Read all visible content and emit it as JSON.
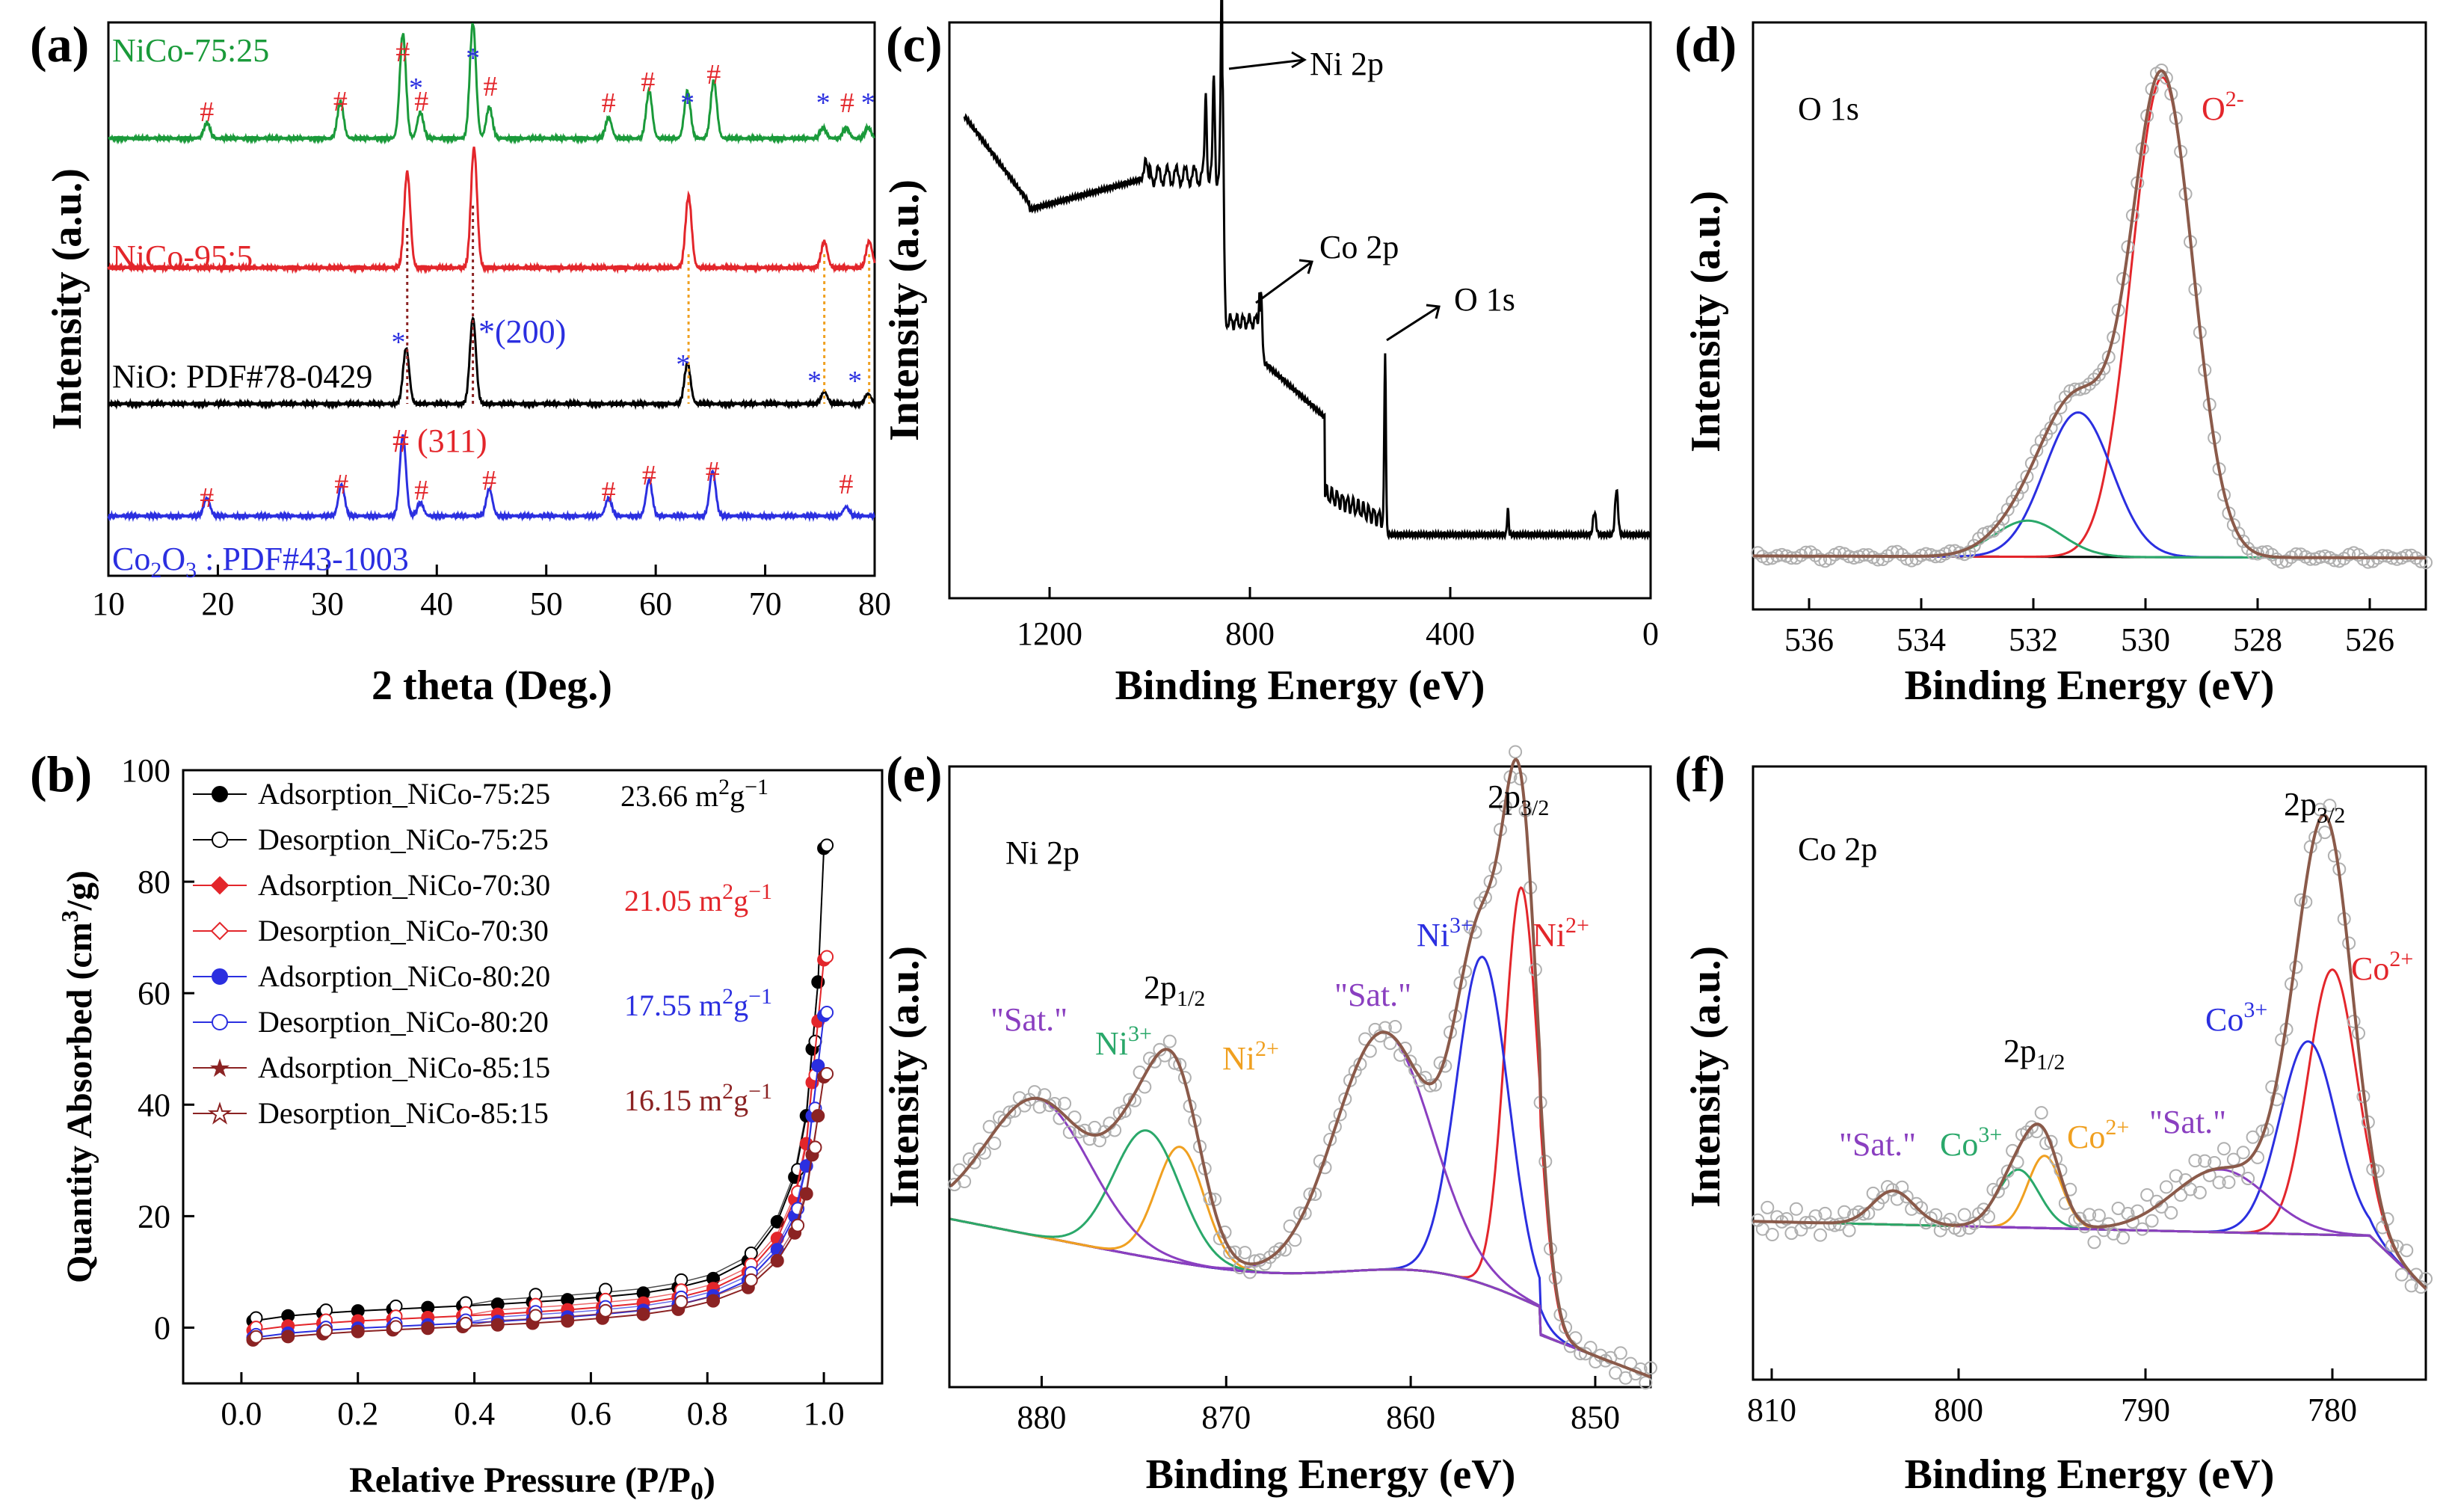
{
  "figure": "XRD, BET and XPS characterization",
  "colors": {
    "black": "#000000",
    "green": "#1a9a3a",
    "red": "#e3262b",
    "blue": "#2b2fe0",
    "orange": "#f0a020",
    "purple": "#8a3fc0",
    "teal": "#2aa86a",
    "brown": "#8b2323",
    "envelope": "#8a5a4a",
    "gray": "#999999",
    "darkblue": "#1a1aa0",
    "lightorange": "#f5a623"
  },
  "chart_data": [
    {
      "id": "a",
      "panel": "(a)",
      "type": "line",
      "xlabel": "2 theta (Deg.)",
      "ylabel": "Intensity (a.u.)",
      "xlim": [
        10,
        80
      ],
      "xticks": [
        10,
        20,
        30,
        40,
        50,
        60,
        70,
        80
      ],
      "series": [
        {
          "name": "NiCo-75:25",
          "color": "green",
          "peaks": [
            [
              19.0,
              0.15
            ],
            [
              31.2,
              0.35
            ],
            [
              36.9,
              1.0
            ],
            [
              38.5,
              0.25
            ],
            [
              43.3,
              1.1
            ],
            [
              44.8,
              0.3
            ],
            [
              55.7,
              0.2
            ],
            [
              59.4,
              0.45
            ],
            [
              62.9,
              0.45
            ],
            [
              65.3,
              0.55
            ],
            [
              75.3,
              0.1
            ],
            [
              77.4,
              0.1
            ],
            [
              79.4,
              0.1
            ]
          ]
        },
        {
          "name": "NiCo-95:5",
          "color": "red",
          "peaks": [
            [
              37.3,
              0.8
            ],
            [
              43.4,
              1.0
            ],
            [
              63.0,
              0.6
            ],
            [
              75.4,
              0.22
            ],
            [
              79.5,
              0.22
            ]
          ]
        },
        {
          "name": "NiO: PDF#78-0429",
          "color": "black",
          "peaks": [
            [
              37.2,
              0.55
            ],
            [
              43.3,
              0.85
            ],
            [
              62.9,
              0.4
            ],
            [
              75.4,
              0.12
            ],
            [
              79.4,
              0.1
            ]
          ]
        },
        {
          "name": "Co2O3 : PDF#43-1003",
          "label_main": "Co",
          "label_sub1": "2",
          "label_mid": "O",
          "label_sub2": "3",
          "label_rest": " : PDF#43-1003",
          "color": "blue",
          "peaks": [
            [
              19.0,
              0.2
            ],
            [
              31.3,
              0.35
            ],
            [
              36.9,
              0.9
            ],
            [
              38.5,
              0.15
            ],
            [
              44.8,
              0.3
            ],
            [
              55.7,
              0.2
            ],
            [
              59.4,
              0.4
            ],
            [
              65.2,
              0.5
            ],
            [
              77.4,
              0.1
            ]
          ]
        }
      ],
      "markers": [
        "#",
        "*"
      ],
      "annotations": [
        "*(200)",
        "# (311)"
      ]
    },
    {
      "id": "b",
      "panel": "(b)",
      "type": "scatter",
      "xlabel": "Relative Pressure (P/P",
      "xlabel_sub": "0",
      "xlabel_end": ")",
      "ylabel": "Quantity Absorbed (cm",
      "ylabel_sup": "3",
      "ylabel_end": "/g)",
      "xlim": [
        -0.1,
        1.1
      ],
      "ylim": [
        -10,
        100
      ],
      "xticks": [
        0.0,
        0.2,
        0.4,
        0.6,
        0.8,
        1.0
      ],
      "yticks": [
        0,
        20,
        40,
        60,
        80,
        100
      ],
      "x": [
        0.02,
        0.08,
        0.14,
        0.2,
        0.26,
        0.32,
        0.38,
        0.44,
        0.5,
        0.56,
        0.62,
        0.69,
        0.75,
        0.81,
        0.87,
        0.92,
        0.95,
        0.97,
        0.98,
        0.99,
        1.0
      ],
      "legend": [
        {
          "label": "Adsorption_NiCo-75:25",
          "color": "black",
          "marker": "filled-circle"
        },
        {
          "label": "Desorption_NiCo-75:25",
          "color": "black",
          "marker": "open-circle"
        },
        {
          "label": "Adsorption_NiCo-70:30",
          "color": "red",
          "marker": "filled-diamond"
        },
        {
          "label": "Desorption_NiCo-70:30",
          "color": "red",
          "marker": "open-diamond"
        },
        {
          "label": "Adsorption_NiCo-80:20",
          "color": "blue",
          "marker": "half-circle"
        },
        {
          "label": "Desorption_NiCo-80:20",
          "color": "blue",
          "marker": "open-circle"
        },
        {
          "label": "Adsorption_NiCo-85:15",
          "color": "brown",
          "marker": "filled-star"
        },
        {
          "label": "Desorption_NiCo-85:15",
          "color": "brown",
          "marker": "open-star"
        }
      ],
      "series": [
        {
          "name": "NiCo-75:25",
          "color": "black",
          "y": [
            1.2,
            2.1,
            2.6,
            3.0,
            3.3,
            3.6,
            3.9,
            4.2,
            4.6,
            5.0,
            5.5,
            6.2,
            7.2,
            8.8,
            12,
            19,
            27,
            38,
            50,
            62,
            86
          ],
          "area": "23.66 m",
          "area_sup": "2",
          "area_mid": "g",
          "area_sup2": "−1"
        },
        {
          "name": "NiCo-70:30",
          "color": "red",
          "y": [
            -0.5,
            0.3,
            0.8,
            1.2,
            1.5,
            1.8,
            2.1,
            2.4,
            2.8,
            3.2,
            3.7,
            4.4,
            5.4,
            7.0,
            10,
            16,
            23,
            33,
            44,
            55,
            66
          ],
          "area": "21.05 m",
          "area_sup": "2",
          "area_mid": "g",
          "area_sup2": "−1"
        },
        {
          "name": "NiCo-80:20",
          "color": "blue",
          "y": [
            -1.8,
            -1.0,
            -0.5,
            -0.1,
            0.2,
            0.5,
            0.8,
            1.1,
            1.5,
            1.9,
            2.4,
            3.1,
            4.1,
            5.7,
            8.5,
            14,
            20,
            29,
            38,
            47,
            56
          ],
          "area": "17.55 m",
          "area_sup": "2",
          "area_mid": "g",
          "area_sup2": "−1"
        },
        {
          "name": "NiCo-85:15",
          "color": "brown",
          "y": [
            -2.2,
            -1.6,
            -1.1,
            -0.7,
            -0.4,
            -0.1,
            0.2,
            0.5,
            0.8,
            1.2,
            1.7,
            2.4,
            3.3,
            4.8,
            7.2,
            12,
            17,
            24,
            31,
            38,
            45
          ],
          "area": "16.15 m",
          "area_sup": "2",
          "area_mid": "g",
          "area_sup2": "−1"
        }
      ]
    },
    {
      "id": "c",
      "panel": "(c)",
      "type": "line",
      "xlabel": "Binding Energy (eV)",
      "ylabel": "Intensity (a.u.)",
      "xlim": [
        1400,
        0
      ],
      "xticks": [
        1200,
        800,
        400,
        0
      ],
      "annotations": [
        "Ni 2p",
        "Co 2p",
        "O 1s"
      ]
    },
    {
      "id": "d",
      "panel": "(d)",
      "type": "line",
      "xlabel": "Binding Energy (eV)",
      "ylabel": "Intensity (a.u.)",
      "xlim": [
        537,
        525
      ],
      "xticks": [
        536,
        534,
        532,
        530,
        528,
        526
      ],
      "title": "O 1s",
      "annotations": [
        {
          "text": "O",
          "sup": "2-"
        }
      ],
      "components": [
        {
          "center": 529.7,
          "height": 0.93,
          "width": 0.55,
          "color": "red"
        },
        {
          "center": 531.2,
          "height": 0.28,
          "width": 0.6,
          "color": "blue"
        },
        {
          "center": 532.1,
          "height": 0.07,
          "width": 0.6,
          "color": "teal"
        }
      ]
    },
    {
      "id": "e",
      "panel": "(e)",
      "type": "line",
      "xlabel": "Binding Energy (eV)",
      "ylabel": "Intensity (a.u.)",
      "xlim": [
        885,
        847
      ],
      "xticks": [
        880,
        870,
        860,
        850
      ],
      "title": "Ni 2p",
      "labels": {
        "p32": "2p",
        "p32_sub": "3/2",
        "p12": "2p",
        "p12_sub": "1/2",
        "ni3a": "Ni",
        "ni3a_sup": "3+",
        "ni2a": "Ni",
        "ni2a_sup": "2+",
        "ni3b": "Ni",
        "ni3b_sup": "3+",
        "ni2b": "Ni",
        "ni2b_sup": "2+",
        "sat1": "\"Sat.\"",
        "sat2": "\"Sat.\""
      },
      "components": [
        {
          "center": 854.0,
          "height": 0.78,
          "width": 0.9,
          "color": "red"
        },
        {
          "center": 856.1,
          "height": 0.62,
          "width": 1.4,
          "color": "blue"
        },
        {
          "center": 861.5,
          "height": 0.45,
          "width": 2.6,
          "color": "purple"
        },
        {
          "center": 872.5,
          "height": 0.22,
          "width": 1.3,
          "color": "orange"
        },
        {
          "center": 874.3,
          "height": 0.24,
          "width": 1.8,
          "color": "teal"
        },
        {
          "center": 880.2,
          "height": 0.26,
          "width": 2.8,
          "color": "purple"
        }
      ]
    },
    {
      "id": "f",
      "panel": "(f)",
      "type": "line",
      "xlabel": "Binding Energy (eV)",
      "ylabel": "Intensity (a.u.)",
      "xlim": [
        811,
        775
      ],
      "xticks": [
        810,
        800,
        790,
        780
      ],
      "title": "Co 2p",
      "labels": {
        "p32": "2p",
        "p32_sub": "3/2",
        "p12": "2p",
        "p12_sub": "1/2",
        "co3a": "Co",
        "co3a_sup": "3+",
        "co2a": "Co",
        "co2a_sup": "2+",
        "co3b": "Co",
        "co3b_sup": "3+",
        "co2b": "Co",
        "co2b_sup": "2+",
        "sat1": "\"Sat.\"",
        "sat2": "\"Sat.\""
      },
      "components": [
        {
          "center": 780.0,
          "height": 0.55,
          "width": 1.3,
          "color": "red"
        },
        {
          "center": 781.3,
          "height": 0.4,
          "width": 1.5,
          "color": "blue"
        },
        {
          "center": 786.0,
          "height": 0.13,
          "width": 2.5,
          "color": "purple"
        },
        {
          "center": 795.4,
          "height": 0.15,
          "width": 0.9,
          "color": "orange"
        },
        {
          "center": 796.8,
          "height": 0.12,
          "width": 1.1,
          "color": "teal"
        },
        {
          "center": 803.5,
          "height": 0.07,
          "width": 1.1,
          "color": "purple"
        }
      ]
    }
  ]
}
